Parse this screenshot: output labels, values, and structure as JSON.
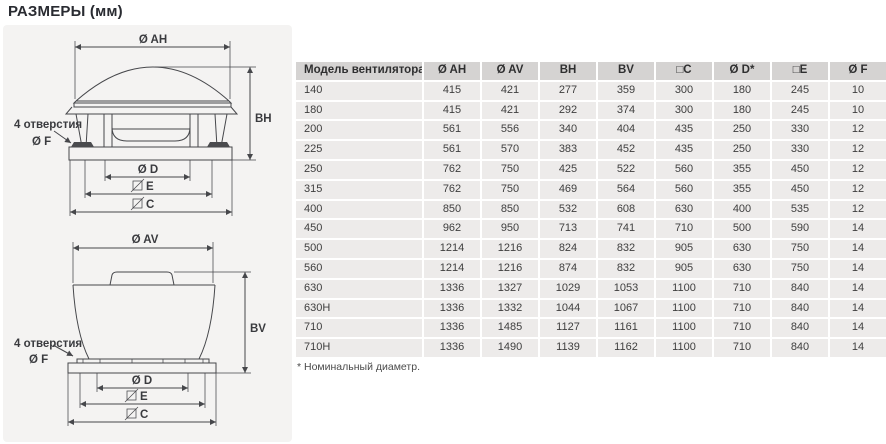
{
  "page": {
    "title": "РАЗМЕРЫ (мм)",
    "footnote": "* Номинальный диаметр."
  },
  "drawing_top": {
    "dim_ah": "Ø AH",
    "dim_bh": "BH",
    "holes_label": "4 отверстия",
    "dim_f": "Ø F",
    "dim_d": "Ø D",
    "dim_e": "E",
    "dim_c": "C"
  },
  "drawing_bottom": {
    "dim_av": "Ø AV",
    "dim_bv": "BV",
    "holes_label": "4 отверстия",
    "dim_f": "Ø F",
    "dim_d": "Ø D",
    "dim_e": "E",
    "dim_c": "C"
  },
  "table": {
    "columns": [
      "Модель вентилятора",
      "Ø AH",
      "Ø AV",
      "BH",
      "BV",
      "□C",
      "Ø D*",
      "□E",
      "Ø F"
    ],
    "rows": [
      [
        "140",
        415,
        421,
        277,
        359,
        300,
        180,
        245,
        10
      ],
      [
        "180",
        415,
        421,
        292,
        374,
        300,
        180,
        245,
        10
      ],
      [
        "200",
        561,
        556,
        340,
        404,
        435,
        250,
        330,
        12
      ],
      [
        "225",
        561,
        570,
        383,
        452,
        435,
        250,
        330,
        12
      ],
      [
        "250",
        762,
        750,
        425,
        522,
        560,
        355,
        450,
        12
      ],
      [
        "315",
        762,
        750,
        469,
        564,
        560,
        355,
        450,
        12
      ],
      [
        "400",
        850,
        850,
        532,
        608,
        630,
        400,
        535,
        12
      ],
      [
        "450",
        962,
        950,
        713,
        741,
        710,
        500,
        590,
        14
      ],
      [
        "500",
        1214,
        1216,
        824,
        832,
        905,
        630,
        750,
        14
      ],
      [
        "560",
        1214,
        1216,
        874,
        832,
        905,
        630,
        750,
        14
      ],
      [
        "630",
        1336,
        1327,
        1029,
        1053,
        1100,
        710,
        840,
        14
      ],
      [
        "630H",
        1336,
        1332,
        1044,
        1067,
        1100,
        710,
        840,
        14
      ],
      [
        "710",
        1336,
        1485,
        1127,
        1161,
        1100,
        710,
        840,
        14
      ],
      [
        "710H",
        1336,
        1490,
        1139,
        1162,
        1100,
        710,
        840,
        14
      ]
    ]
  },
  "colors": {
    "panel_bg": "#f4f3f2",
    "header_bg": "#d5d3d2",
    "row_bg": "#edebea",
    "line": "#46474b",
    "text": "#3e3e3e",
    "title_text": "#292b31"
  }
}
